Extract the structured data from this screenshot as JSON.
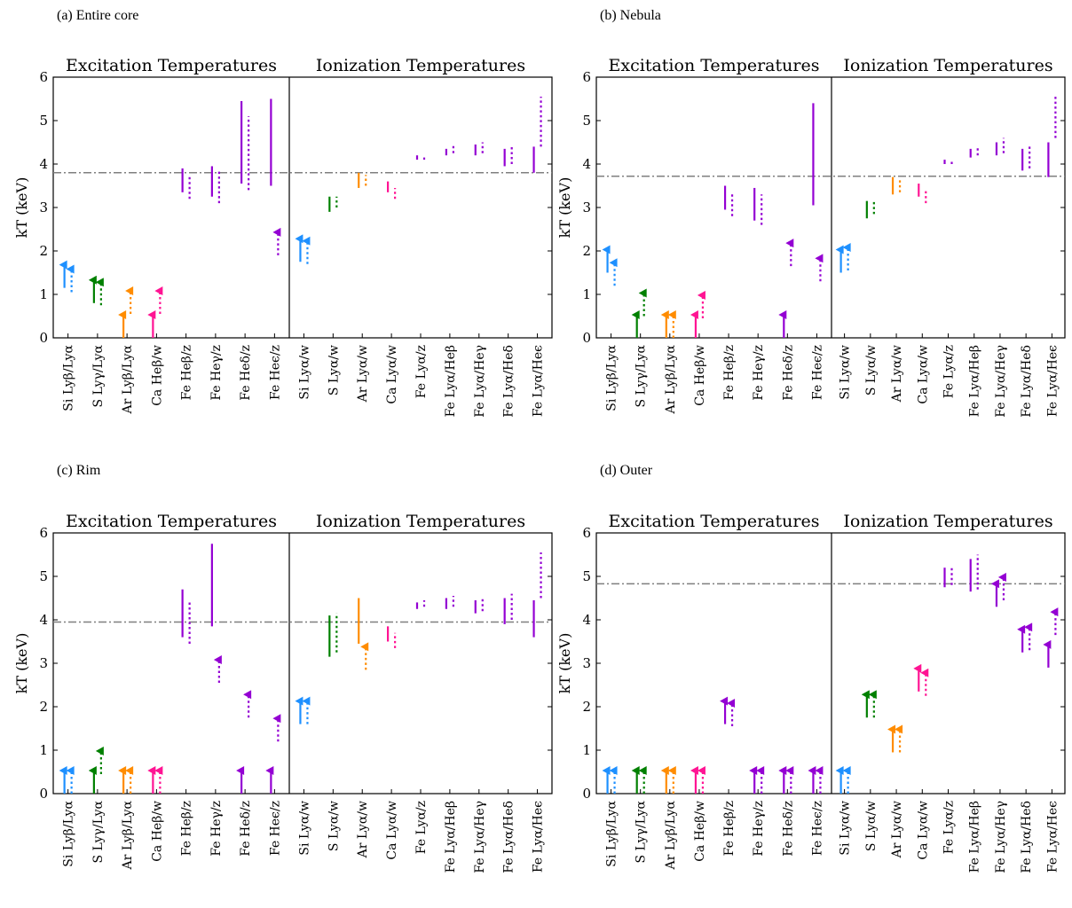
{
  "chart_data": [
    {
      "panel_label": "(a) Entire core",
      "type": "scatter",
      "ylabel": "kT (keV)",
      "ylim": [
        0,
        6
      ],
      "yticks": [
        0,
        1,
        2,
        3,
        4,
        5,
        6
      ],
      "reference_kT": 3.8,
      "groups": [
        {
          "title": "Excitation Temperatures",
          "categories": [
            "Si Lyβ/Lyα",
            "S Lyγ/Lyα",
            "Ar Lyβ/Lyα",
            "Ca Heβ/w",
            "Fe Heβ/z",
            "Fe Heγ/z",
            "Fe Heδ/z",
            "Fe Heϵ/z"
          ],
          "colors": [
            "#1e90ff",
            "#008000",
            "#ff8c00",
            "#ff1493",
            "#9400d3",
            "#9400d3",
            "#9400d3",
            "#9400d3"
          ],
          "solid": [
            {
              "lower_limit": 1.15
            },
            {
              "lower_limit": 0.8
            },
            {
              "lower_limit": 0.0
            },
            {
              "lower_limit": 0.0
            },
            {
              "low": 3.35,
              "high": 3.9
            },
            {
              "low": 3.25,
              "high": 3.95
            },
            {
              "low": 3.55,
              "high": 5.45
            },
            {
              "low": 3.5,
              "high": 5.5
            }
          ],
          "dotted": [
            {
              "lower_limit": 1.05
            },
            {
              "lower_limit": 0.75
            },
            {
              "lower_limit": 0.55
            },
            {
              "lower_limit": 0.55
            },
            {
              "low": 3.2,
              "high": 3.75
            },
            {
              "low": 3.1,
              "high": 3.85
            },
            {
              "low": 3.4,
              "high": 5.1
            },
            {
              "lower_limit": 1.9
            }
          ]
        },
        {
          "title": "Ionization Temperatures",
          "categories": [
            "Si Lyα/w",
            "S Lyα/w",
            "Ar Lyα/w",
            "Ca Lyα/w",
            "Fe Lyα/z",
            "Fe Lyα/Heβ",
            "Fe Lyα/Heγ",
            "Fe Lyα/Heδ",
            "Fe Lyα/Heϵ"
          ],
          "colors": [
            "#1e90ff",
            "#008000",
            "#ff8c00",
            "#ff1493",
            "#9400d3",
            "#9400d3",
            "#9400d3",
            "#9400d3",
            "#9400d3"
          ],
          "solid": [
            {
              "lower_limit": 1.75
            },
            {
              "low": 2.9,
              "high": 3.25
            },
            {
              "low": 3.45,
              "high": 3.8
            },
            {
              "low": 3.35,
              "high": 3.6
            },
            {
              "low": 4.1,
              "high": 4.2
            },
            {
              "low": 4.2,
              "high": 4.35
            },
            {
              "low": 4.2,
              "high": 4.45
            },
            {
              "low": 3.95,
              "high": 4.35
            },
            {
              "low": 3.8,
              "high": 4.4
            }
          ],
          "dotted": [
            {
              "lower_limit": 1.7
            },
            {
              "low": 3.0,
              "high": 3.25
            },
            {
              "low": 3.5,
              "high": 3.75
            },
            {
              "low": 3.2,
              "high": 3.45
            },
            {
              "low": 4.1,
              "high": 4.2
            },
            {
              "low": 4.25,
              "high": 4.45
            },
            {
              "low": 4.25,
              "high": 4.5
            },
            {
              "low": 4.0,
              "high": 4.45
            },
            {
              "low": 4.4,
              "high": 5.55
            }
          ]
        }
      ]
    },
    {
      "panel_label": "(b) Nebula",
      "type": "scatter",
      "ylabel": "kT (keV)",
      "ylim": [
        0,
        6
      ],
      "yticks": [
        0,
        1,
        2,
        3,
        4,
        5,
        6
      ],
      "reference_kT": 3.72,
      "groups": [
        {
          "title": "Excitation Temperatures",
          "categories": [
            "Si Lyβ/Lyα",
            "S Lyγ/Lyα",
            "Ar Lyβ/Lyα",
            "Ca Heβ/w",
            "Fe Heβ/z",
            "Fe Heγ/z",
            "Fe Heδ/z",
            "Fe Heϵ/z"
          ],
          "colors": [
            "#1e90ff",
            "#008000",
            "#ff8c00",
            "#ff1493",
            "#9400d3",
            "#9400d3",
            "#9400d3",
            "#9400d3"
          ],
          "solid": [
            {
              "lower_limit": 1.5
            },
            {
              "lower_limit": 0.0
            },
            {
              "lower_limit": 0.0
            },
            {
              "lower_limit": 0.0
            },
            {
              "low": 2.95,
              "high": 3.5
            },
            {
              "low": 2.7,
              "high": 3.45
            },
            {
              "lower_limit": 0.0
            },
            {
              "low": 3.05,
              "high": 5.4
            }
          ],
          "dotted": [
            {
              "lower_limit": 1.2
            },
            {
              "lower_limit": 0.5
            },
            {
              "lower_limit": 0.0
            },
            {
              "lower_limit": 0.45
            },
            {
              "low": 2.8,
              "high": 3.35
            },
            {
              "low": 2.6,
              "high": 3.3
            },
            {
              "lower_limit": 1.65
            },
            {
              "lower_limit": 1.3
            }
          ]
        },
        {
          "title": "Ionization Temperatures",
          "categories": [
            "Si Lyα/w",
            "S Lyα/w",
            "Ar Lyα/w",
            "Ca Lyα/w",
            "Fe Lyα/z",
            "Fe Lyα/Heβ",
            "Fe Lyα/Heγ",
            "Fe Lyα/Heδ",
            "Fe Lyα/Heϵ"
          ],
          "colors": [
            "#1e90ff",
            "#008000",
            "#ff8c00",
            "#ff1493",
            "#9400d3",
            "#9400d3",
            "#9400d3",
            "#9400d3",
            "#9400d3"
          ],
          "solid": [
            {
              "lower_limit": 1.5
            },
            {
              "low": 2.75,
              "high": 3.15
            },
            {
              "low": 3.3,
              "high": 3.7
            },
            {
              "low": 3.25,
              "high": 3.55
            },
            {
              "low": 4.0,
              "high": 4.1
            },
            {
              "low": 4.15,
              "high": 4.35
            },
            {
              "low": 4.2,
              "high": 4.5
            },
            {
              "low": 3.85,
              "high": 4.35
            },
            {
              "low": 3.7,
              "high": 4.5
            }
          ],
          "dotted": [
            {
              "lower_limit": 1.55
            },
            {
              "low": 2.85,
              "high": 3.15
            },
            {
              "low": 3.35,
              "high": 3.65
            },
            {
              "low": 3.1,
              "high": 3.4
            },
            {
              "low": 4.0,
              "high": 4.1
            },
            {
              "low": 4.2,
              "high": 4.4
            },
            {
              "low": 4.25,
              "high": 4.6
            },
            {
              "low": 3.9,
              "high": 4.45
            },
            {
              "low": 4.6,
              "high": 5.6
            }
          ]
        }
      ]
    },
    {
      "panel_label": "(c) Rim",
      "type": "scatter",
      "ylabel": "kT (keV)",
      "ylim": [
        0,
        6
      ],
      "yticks": [
        0,
        1,
        2,
        3,
        4,
        5,
        6
      ],
      "reference_kT": 3.95,
      "groups": [
        {
          "title": "Excitation Temperatures",
          "categories": [
            "Si Lyβ/Lyα",
            "S Lyγ/Lyα",
            "Ar Lyβ/Lyα",
            "Ca Heβ/w",
            "Fe Heβ/z",
            "Fe Heγ/z",
            "Fe Heδ/z",
            "Fe Heϵ/z"
          ],
          "colors": [
            "#1e90ff",
            "#008000",
            "#ff8c00",
            "#ff1493",
            "#9400d3",
            "#9400d3",
            "#9400d3",
            "#9400d3"
          ],
          "solid": [
            {
              "lower_limit": 0.0
            },
            {
              "lower_limit": 0.0
            },
            {
              "lower_limit": 0.0
            },
            {
              "lower_limit": 0.0
            },
            {
              "low": 3.6,
              "high": 4.7
            },
            {
              "low": 3.85,
              "high": 5.75
            },
            {
              "lower_limit": 0.0
            },
            {
              "lower_limit": 0.0
            }
          ],
          "dotted": [
            {
              "lower_limit": 0.0
            },
            {
              "lower_limit": 0.45
            },
            {
              "lower_limit": 0.0
            },
            {
              "lower_limit": 0.0
            },
            {
              "low": 3.45,
              "high": 4.4
            },
            {
              "lower_limit": 2.55
            },
            {
              "lower_limit": 1.75
            },
            {
              "lower_limit": 1.2
            }
          ]
        },
        {
          "title": "Ionization Temperatures",
          "categories": [
            "Si Lyα/w",
            "S Lyα/w",
            "Ar Lyα/w",
            "Ca Lyα/w",
            "Fe Lyα/z",
            "Fe Lyα/Heβ",
            "Fe Lyα/Heγ",
            "Fe Lyα/Heδ",
            "Fe Lyα/Heϵ"
          ],
          "colors": [
            "#1e90ff",
            "#008000",
            "#ff8c00",
            "#ff1493",
            "#9400d3",
            "#9400d3",
            "#9400d3",
            "#9400d3",
            "#9400d3"
          ],
          "solid": [
            {
              "lower_limit": 1.6
            },
            {
              "low": 3.15,
              "high": 4.1
            },
            {
              "low": 3.45,
              "high": 4.5
            },
            {
              "low": 3.5,
              "high": 3.85
            },
            {
              "low": 4.25,
              "high": 4.4
            },
            {
              "low": 4.25,
              "high": 4.5
            },
            {
              "low": 4.15,
              "high": 4.45
            },
            {
              "low": 3.9,
              "high": 4.5
            },
            {
              "low": 3.6,
              "high": 4.45
            }
          ],
          "dotted": [
            {
              "lower_limit": 1.6
            },
            {
              "low": 3.25,
              "high": 4.15
            },
            {
              "lower_limit": 2.85
            },
            {
              "low": 3.35,
              "high": 3.7
            },
            {
              "low": 4.3,
              "high": 4.45
            },
            {
              "low": 4.3,
              "high": 4.55
            },
            {
              "low": 4.2,
              "high": 4.5
            },
            {
              "low": 4.0,
              "high": 4.6
            },
            {
              "low": 4.5,
              "high": 5.55
            }
          ]
        }
      ]
    },
    {
      "panel_label": "(d) Outer",
      "type": "scatter",
      "ylabel": "kT (keV)",
      "ylim": [
        0,
        6
      ],
      "yticks": [
        0,
        1,
        2,
        3,
        4,
        5,
        6
      ],
      "reference_kT": 4.83,
      "groups": [
        {
          "title": "Excitation Temperatures",
          "categories": [
            "Si Lyβ/Lyα",
            "S Lyγ/Lyα",
            "Ar Lyβ/Lyα",
            "Ca Heβ/w",
            "Fe Heβ/z",
            "Fe Heγ/z",
            "Fe Heδ/z",
            "Fe Heϵ/z"
          ],
          "colors": [
            "#1e90ff",
            "#008000",
            "#ff8c00",
            "#ff1493",
            "#9400d3",
            "#9400d3",
            "#9400d3",
            "#9400d3"
          ],
          "solid": [
            {
              "lower_limit": 0.0
            },
            {
              "lower_limit": 0.0
            },
            {
              "lower_limit": 0.0
            },
            {
              "lower_limit": 0.0
            },
            {
              "lower_limit": 1.6
            },
            {
              "lower_limit": 0.0
            },
            {
              "lower_limit": 0.0
            },
            {
              "lower_limit": 0.0
            }
          ],
          "dotted": [
            {
              "lower_limit": 0.0
            },
            {
              "lower_limit": 0.0
            },
            {
              "lower_limit": 0.0
            },
            {
              "lower_limit": 0.0
            },
            {
              "lower_limit": 1.55
            },
            {
              "lower_limit": 0.0
            },
            {
              "lower_limit": 0.0
            },
            {
              "lower_limit": 0.0
            }
          ]
        },
        {
          "title": "Ionization Temperatures",
          "categories": [
            "Si Lyα/w",
            "S Lyα/w",
            "Ar Lyα/w",
            "Ca Lyα/w",
            "Fe Lyα/z",
            "Fe Lyα/Heβ",
            "Fe Lyα/Heγ",
            "Fe Lyα/Heδ",
            "Fe Lyα/Heϵ"
          ],
          "colors": [
            "#1e90ff",
            "#008000",
            "#ff8c00",
            "#ff1493",
            "#9400d3",
            "#9400d3",
            "#9400d3",
            "#9400d3",
            "#9400d3"
          ],
          "solid": [
            {
              "lower_limit": 0.0
            },
            {
              "lower_limit": 1.75
            },
            {
              "lower_limit": 0.95
            },
            {
              "lower_limit": 2.35
            },
            {
              "low": 4.75,
              "high": 5.2
            },
            {
              "low": 4.65,
              "high": 5.4
            },
            {
              "lower_limit": 4.3
            },
            {
              "lower_limit": 3.25
            },
            {
              "lower_limit": 2.9
            }
          ],
          "dotted": [
            {
              "lower_limit": 0.0
            },
            {
              "lower_limit": 1.75
            },
            {
              "lower_limit": 0.95
            },
            {
              "lower_limit": 2.25
            },
            {
              "low": 4.8,
              "high": 5.2
            },
            {
              "low": 4.7,
              "high": 5.5
            },
            {
              "lower_limit": 4.45
            },
            {
              "lower_limit": 3.3
            },
            {
              "lower_limit": 3.65
            }
          ]
        }
      ]
    }
  ]
}
